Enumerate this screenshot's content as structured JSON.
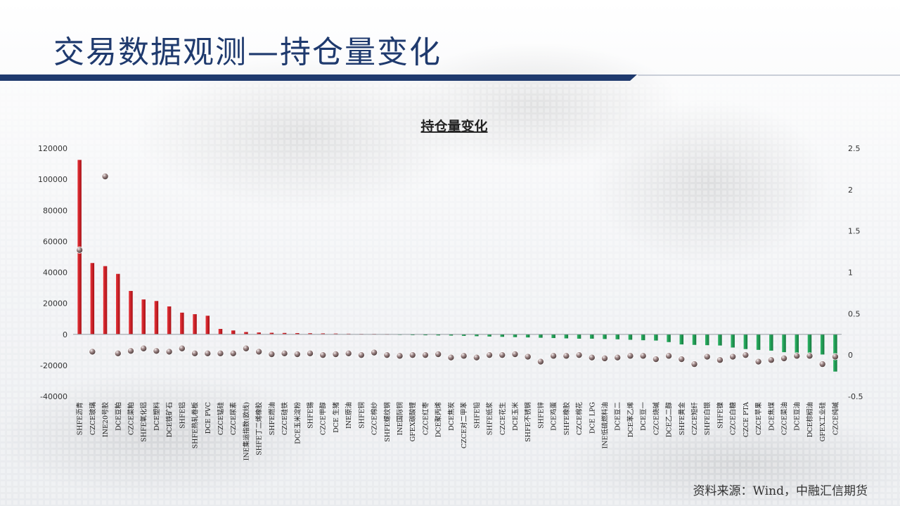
{
  "slide": {
    "title": "交易数据观测—持仓量变化",
    "source": "资料来源：Wind，中融汇信期货"
  },
  "colors": {
    "positive_bar": "#c8161d",
    "negative_bar": "#1c9a50",
    "marker": "#8a7474",
    "title_blue": "#1f3a6e"
  },
  "chart_data": {
    "type": "bar",
    "title": "持仓量变化",
    "legend": "none",
    "grid": false,
    "ylim_left": [
      -40000,
      120000
    ],
    "ylim_right": [
      -0.5,
      2.5
    ],
    "yticks_left": [
      "120000",
      "100000",
      "80000",
      "60000",
      "40000",
      "20000",
      "0",
      "-20000",
      "-40000"
    ],
    "yticks_right": [
      "2.5",
      "2",
      "1.5",
      "1",
      "0.5",
      "0",
      "-0.5"
    ],
    "categories": [
      "SHFE沥青",
      "CZCE玻璃",
      "INE20号胶",
      "DCE豆粕",
      "CZCE菜粕",
      "SHFE氧化铝",
      "DCE塑料",
      "DCE铁矿石",
      "SHFE铝",
      "SHFE热轧卷板",
      "DCE PVC",
      "CZCE锰硅",
      "CZCE尿素",
      "INE集运指数(欧线)",
      "SHFE丁二烯橡胶",
      "SHFE燃油",
      "CZCE硅铁",
      "DCE玉米淀粉",
      "SHFE锡",
      "CZCE甲醇",
      "DCE 生猪",
      "INE原油",
      "SHFE铜",
      "CZCE棉纱",
      "SHFE螺纹钢",
      "INE国际铜",
      "GFEX碳酸锂",
      "CZCE红枣",
      "DCE聚丙烯",
      "DCE焦炭",
      "CZCE对二甲苯",
      "SHFE铅",
      "SHFE纸浆",
      "CZCE花生",
      "DCE玉米",
      "SHFE不锈钢",
      "SHFE锌",
      "DCE鸡蛋",
      "SHFE橡胶",
      "CZCE棉花",
      "DCE LPG",
      "INE低硫燃料油",
      "DCE豆二",
      "DCE苯乙烯",
      "DCE豆一",
      "CZCE烧碱",
      "DCE乙二醇",
      "SHFE黄金",
      "CZCE短纤",
      "SHFE白银",
      "SHFE镍",
      "CZCE白糖",
      "CZCE PTA",
      "CZCE苹果",
      "DCE焦煤",
      "CZCE菜油",
      "DCE豆油",
      "DCE棕榈油",
      "GFEX工业硅",
      "CZCE纯碱"
    ],
    "series": [
      {
        "type": "bar",
        "axis": "left",
        "values": [
          112500,
          46000,
          44000,
          39000,
          28000,
          22500,
          21500,
          18000,
          14000,
          13000,
          12000,
          3500,
          2500,
          1500,
          1200,
          1000,
          900,
          800,
          700,
          600,
          500,
          400,
          300,
          300,
          200,
          -300,
          -500,
          -600,
          -700,
          -800,
          -1000,
          -1200,
          -1400,
          -1600,
          -1800,
          -2000,
          -2200,
          -2400,
          -2600,
          -2800,
          -2800,
          -3000,
          -3200,
          -3500,
          -3800,
          -4000,
          -5000,
          -6500,
          -6800,
          -7000,
          -7200,
          -8500,
          -9500,
          -10000,
          -10500,
          -11500,
          -12000,
          -12500,
          -13000,
          -24000
        ]
      },
      {
        "type": "scatter",
        "axis": "right",
        "values": [
          1.27,
          0.04,
          2.16,
          0.02,
          0.05,
          0.08,
          0.05,
          0.04,
          0.08,
          0.02,
          0.02,
          0.02,
          0.02,
          0.08,
          0.04,
          0.01,
          0.02,
          0.01,
          0.02,
          0.0,
          0.01,
          0.02,
          0.0,
          0.03,
          0.0,
          -0.01,
          0.0,
          0.0,
          0.01,
          -0.03,
          -0.01,
          -0.03,
          0.0,
          0.0,
          0.01,
          -0.02,
          -0.08,
          -0.01,
          -0.01,
          0.0,
          -0.03,
          -0.04,
          -0.03,
          -0.01,
          -0.01,
          -0.05,
          -0.01,
          -0.05,
          -0.11,
          -0.02,
          -0.06,
          -0.02,
          0.0,
          -0.08,
          -0.06,
          -0.04,
          -0.01,
          -0.01,
          -0.11,
          -0.02
        ]
      }
    ]
  }
}
